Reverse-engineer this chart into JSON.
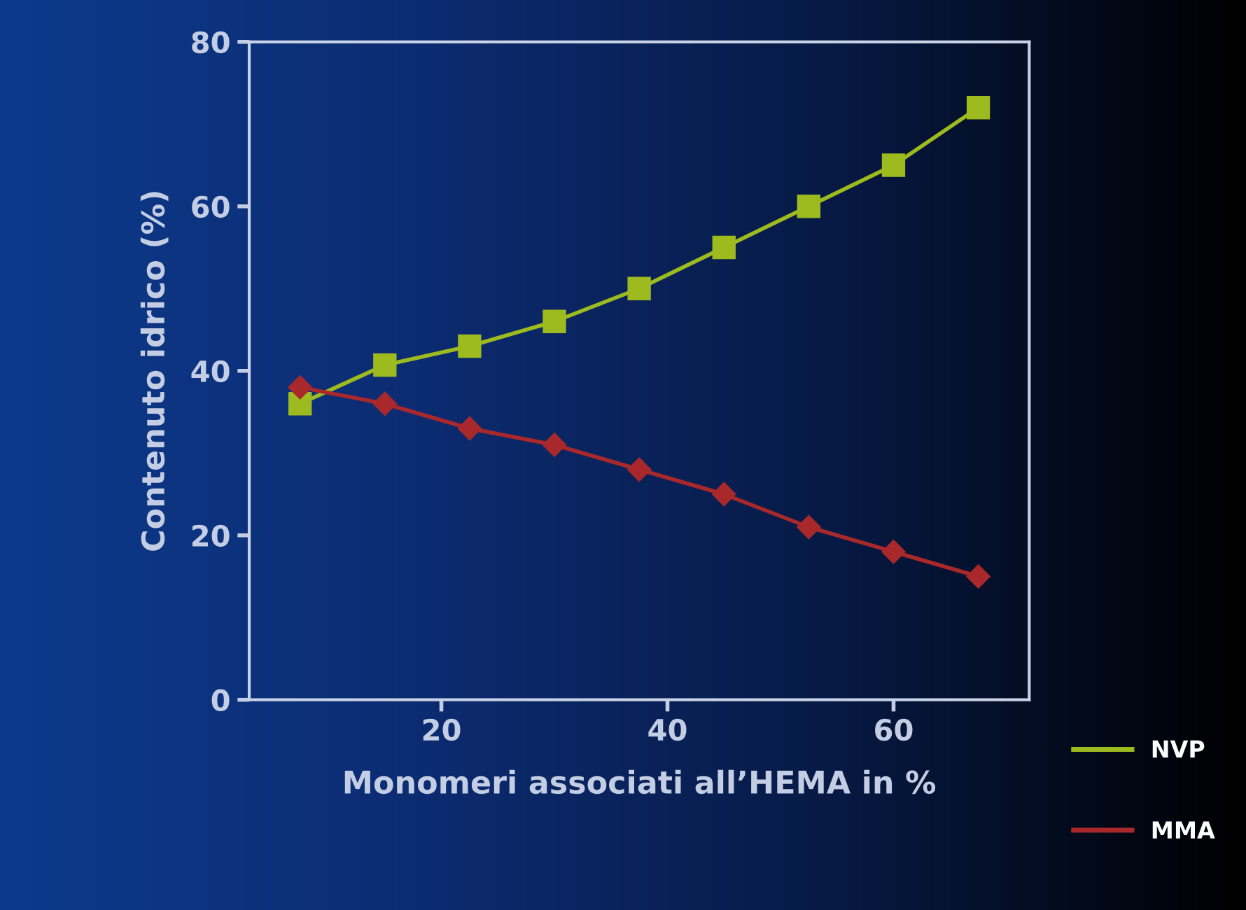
{
  "chart_data": {
    "type": "line",
    "xlabel": "Monomeri associati all’HEMA in %",
    "ylabel": "Contenuto idrico (%)",
    "x": [
      7.5,
      15,
      22.5,
      30,
      37.5,
      45,
      52.5,
      60,
      67.5
    ],
    "series": [
      {
        "name": "NVP",
        "color": "#9dba1e",
        "marker": "square",
        "values": [
          36,
          40.7,
          43,
          46,
          50,
          55,
          60,
          65,
          72
        ]
      },
      {
        "name": "MMA",
        "color": "#a8282c",
        "marker": "diamond",
        "values": [
          38,
          36,
          33,
          31,
          28,
          25,
          21,
          18,
          15
        ]
      }
    ],
    "xlim": [
      3,
      72
    ],
    "xticks": [
      20,
      40,
      60
    ],
    "ylim": [
      0,
      80
    ],
    "yticks": [
      0,
      20,
      40,
      60,
      80
    ],
    "grid": false,
    "legend": "bottom right",
    "line_style": "solid"
  }
}
